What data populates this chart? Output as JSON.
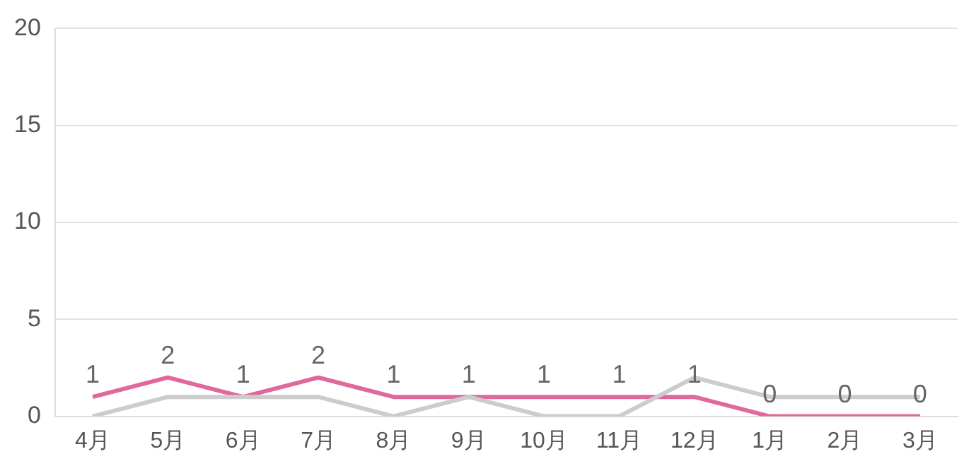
{
  "chart_data": {
    "type": "line",
    "categories": [
      "4月",
      "5月",
      "6月",
      "7月",
      "8月",
      "9月",
      "10月",
      "11月",
      "12月",
      "1月",
      "2月",
      "3月"
    ],
    "series": [
      {
        "color": "#cccccc",
        "values": [
          0,
          1,
          1,
          1,
          0,
          1,
          0,
          0,
          2,
          1,
          1,
          1
        ]
      },
      {
        "color": "#e0699c",
        "values": [
          1,
          2,
          1,
          2,
          1,
          1,
          1,
          1,
          1,
          0,
          0,
          0
        ],
        "value_labels": [
          "1",
          "2",
          "1",
          "2",
          "1",
          "1",
          "1",
          "1",
          "1",
          "0",
          "0",
          "0"
        ]
      }
    ],
    "ylim": [
      0,
      20
    ],
    "yticks": [
      0,
      5,
      10,
      15,
      20
    ],
    "grid": "y",
    "legend": false,
    "marker": "none",
    "line_style": "solid"
  }
}
